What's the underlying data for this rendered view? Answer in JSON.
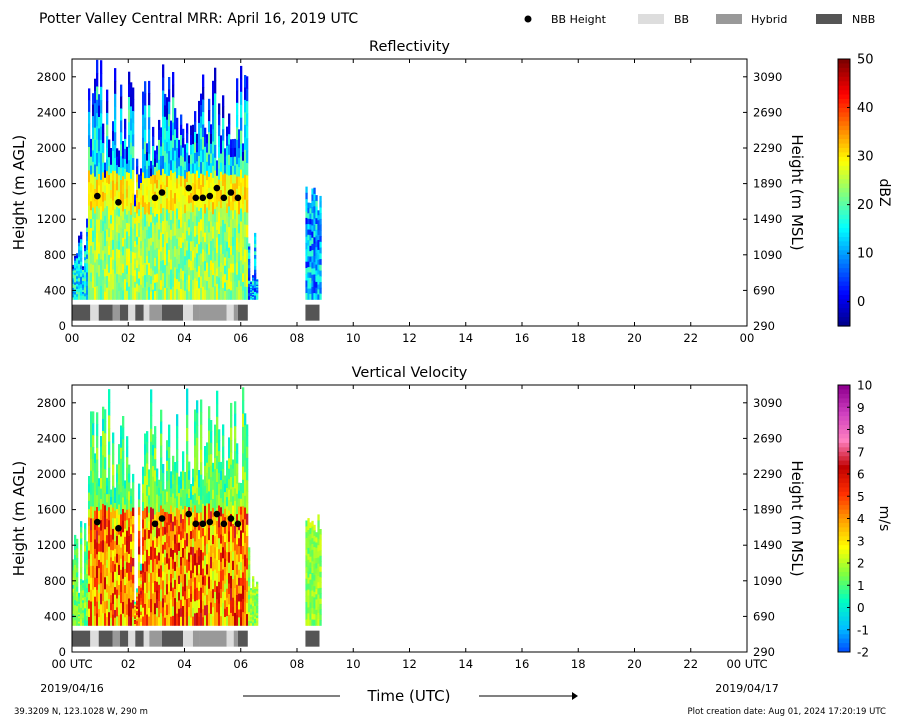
{
  "header": {
    "title": "Potter Valley Central MRR:  April 16, 2019 UTC",
    "legend": [
      {
        "label": "BB Height",
        "color": "#000000",
        "kind": "dot"
      },
      {
        "label": "BB",
        "color": "#dddddd",
        "kind": "swatch"
      },
      {
        "label": "Hybrid",
        "color": "#999999",
        "kind": "swatch"
      },
      {
        "label": "NBB",
        "color": "#555555",
        "kind": "swatch"
      }
    ]
  },
  "footer": {
    "location": "39.3209 N, 123.1028 W, 290 m",
    "creation": "Plot creation date: Aug 01, 2024 17:20:19 UTC",
    "xlabel": "Time (UTC)",
    "start_date": "2019/04/16",
    "end_date": "2019/04/17"
  },
  "chart_data": [
    {
      "type": "heatmap",
      "title": "Reflectivity",
      "ylabel": "Height (m AGL)",
      "ylabel_right": "Height (m MSL)",
      "xlim": [
        0,
        24
      ],
      "ylim": [
        0,
        3000
      ],
      "x_ticks": [
        "00",
        "02",
        "04",
        "06",
        "08",
        "10",
        "12",
        "14",
        "16",
        "18",
        "20",
        "22",
        "00"
      ],
      "y_ticks": [
        0,
        400,
        800,
        1200,
        1600,
        2000,
        2400,
        2800
      ],
      "y_ticks_right": [
        290,
        690,
        1090,
        1490,
        1890,
        2290,
        2690,
        3090
      ],
      "colorbar": {
        "label": "dBZ",
        "min": -5,
        "max": 50,
        "ticks": [
          0,
          10,
          20,
          30,
          40,
          50
        ],
        "colors": [
          "#00007f",
          "#0000ff",
          "#0080ff",
          "#00ffff",
          "#80ff80",
          "#ffff00",
          "#ff8000",
          "#ff0000",
          "#7f0000"
        ]
      },
      "colormap": "jet",
      "data_segments": [
        [
          0.0,
          6.6
        ],
        [
          8.3,
          8.8
        ]
      ],
      "bb_height_points": [
        {
          "x": 0.9,
          "y": 1460
        },
        {
          "x": 1.65,
          "y": 1390
        },
        {
          "x": 2.95,
          "y": 1440
        },
        {
          "x": 3.2,
          "y": 1500
        },
        {
          "x": 4.15,
          "y": 1550
        },
        {
          "x": 4.4,
          "y": 1440
        },
        {
          "x": 4.65,
          "y": 1440
        },
        {
          "x": 4.9,
          "y": 1460
        },
        {
          "x": 5.15,
          "y": 1550
        },
        {
          "x": 5.4,
          "y": 1440
        },
        {
          "x": 5.65,
          "y": 1500
        },
        {
          "x": 5.9,
          "y": 1440
        }
      ],
      "bb_classification": [
        {
          "start": 0.0,
          "end": 0.65,
          "type": "NBB"
        },
        {
          "start": 0.65,
          "end": 0.95,
          "type": "BB"
        },
        {
          "start": 0.95,
          "end": 1.45,
          "type": "NBB"
        },
        {
          "start": 1.45,
          "end": 1.7,
          "type": "Hybrid"
        },
        {
          "start": 1.7,
          "end": 2.0,
          "type": "NBB"
        },
        {
          "start": 2.0,
          "end": 2.25,
          "type": "BB"
        },
        {
          "start": 2.25,
          "end": 2.55,
          "type": "NBB"
        },
        {
          "start": 2.55,
          "end": 2.75,
          "type": "BB"
        },
        {
          "start": 2.75,
          "end": 3.2,
          "type": "Hybrid"
        },
        {
          "start": 3.2,
          "end": 3.95,
          "type": "NBB"
        },
        {
          "start": 3.95,
          "end": 4.3,
          "type": "BB"
        },
        {
          "start": 4.3,
          "end": 4.55,
          "type": "Hybrid"
        },
        {
          "start": 4.55,
          "end": 5.5,
          "type": "Hybrid"
        },
        {
          "start": 5.5,
          "end": 5.75,
          "type": "BB"
        },
        {
          "start": 5.75,
          "end": 5.9,
          "type": "Hybrid"
        },
        {
          "start": 5.9,
          "end": 6.25,
          "type": "NBB"
        },
        {
          "start": 8.3,
          "end": 8.8,
          "type": "NBB"
        }
      ]
    },
    {
      "type": "heatmap",
      "title": "Vertical Velocity",
      "ylabel": "Height (m AGL)",
      "ylabel_right": "Height (m MSL)",
      "xlim": [
        0,
        24
      ],
      "ylim": [
        0,
        3000
      ],
      "x_ticks": [
        "00 UTC",
        "02",
        "04",
        "06",
        "08",
        "10",
        "12",
        "14",
        "16",
        "18",
        "20",
        "22",
        "00 UTC"
      ],
      "y_ticks": [
        0,
        400,
        800,
        1200,
        1600,
        2000,
        2400,
        2800
      ],
      "y_ticks_right": [
        290,
        690,
        1090,
        1490,
        1890,
        2290,
        2690,
        3090
      ],
      "colorbar": {
        "label": "m/s",
        "min": -2,
        "max": 10,
        "ticks": [
          -2,
          -1,
          0,
          1,
          2,
          3,
          4,
          5,
          6,
          7,
          8,
          9,
          10
        ],
        "colors": [
          "#0040ff",
          "#00c0ff",
          "#00ffc0",
          "#80ff40",
          "#ffff00",
          "#ffa000",
          "#ff3000",
          "#c00000",
          "#ff80c0",
          "#d040c0",
          "#900090"
        ]
      },
      "colormap": "velocity",
      "data_segments": [
        [
          0.0,
          6.6
        ],
        [
          8.3,
          8.8
        ]
      ],
      "bb_height_points": [
        {
          "x": 0.9,
          "y": 1460
        },
        {
          "x": 1.65,
          "y": 1390
        },
        {
          "x": 2.95,
          "y": 1440
        },
        {
          "x": 3.2,
          "y": 1500
        },
        {
          "x": 4.15,
          "y": 1550
        },
        {
          "x": 4.4,
          "y": 1440
        },
        {
          "x": 4.65,
          "y": 1440
        },
        {
          "x": 4.9,
          "y": 1460
        },
        {
          "x": 5.15,
          "y": 1550
        },
        {
          "x": 5.4,
          "y": 1440
        },
        {
          "x": 5.65,
          "y": 1500
        },
        {
          "x": 5.9,
          "y": 1440
        }
      ],
      "bb_classification": [
        {
          "start": 0.0,
          "end": 0.65,
          "type": "NBB"
        },
        {
          "start": 0.65,
          "end": 0.95,
          "type": "BB"
        },
        {
          "start": 0.95,
          "end": 1.45,
          "type": "NBB"
        },
        {
          "start": 1.45,
          "end": 1.7,
          "type": "Hybrid"
        },
        {
          "start": 1.7,
          "end": 2.0,
          "type": "NBB"
        },
        {
          "start": 2.0,
          "end": 2.25,
          "type": "BB"
        },
        {
          "start": 2.25,
          "end": 2.55,
          "type": "NBB"
        },
        {
          "start": 2.55,
          "end": 2.75,
          "type": "BB"
        },
        {
          "start": 2.75,
          "end": 3.2,
          "type": "Hybrid"
        },
        {
          "start": 3.2,
          "end": 3.95,
          "type": "NBB"
        },
        {
          "start": 3.95,
          "end": 4.3,
          "type": "BB"
        },
        {
          "start": 4.3,
          "end": 4.55,
          "type": "Hybrid"
        },
        {
          "start": 4.55,
          "end": 5.5,
          "type": "Hybrid"
        },
        {
          "start": 5.5,
          "end": 5.75,
          "type": "BB"
        },
        {
          "start": 5.75,
          "end": 5.9,
          "type": "Hybrid"
        },
        {
          "start": 5.9,
          "end": 6.25,
          "type": "NBB"
        },
        {
          "start": 8.3,
          "end": 8.8,
          "type": "NBB"
        }
      ]
    }
  ]
}
